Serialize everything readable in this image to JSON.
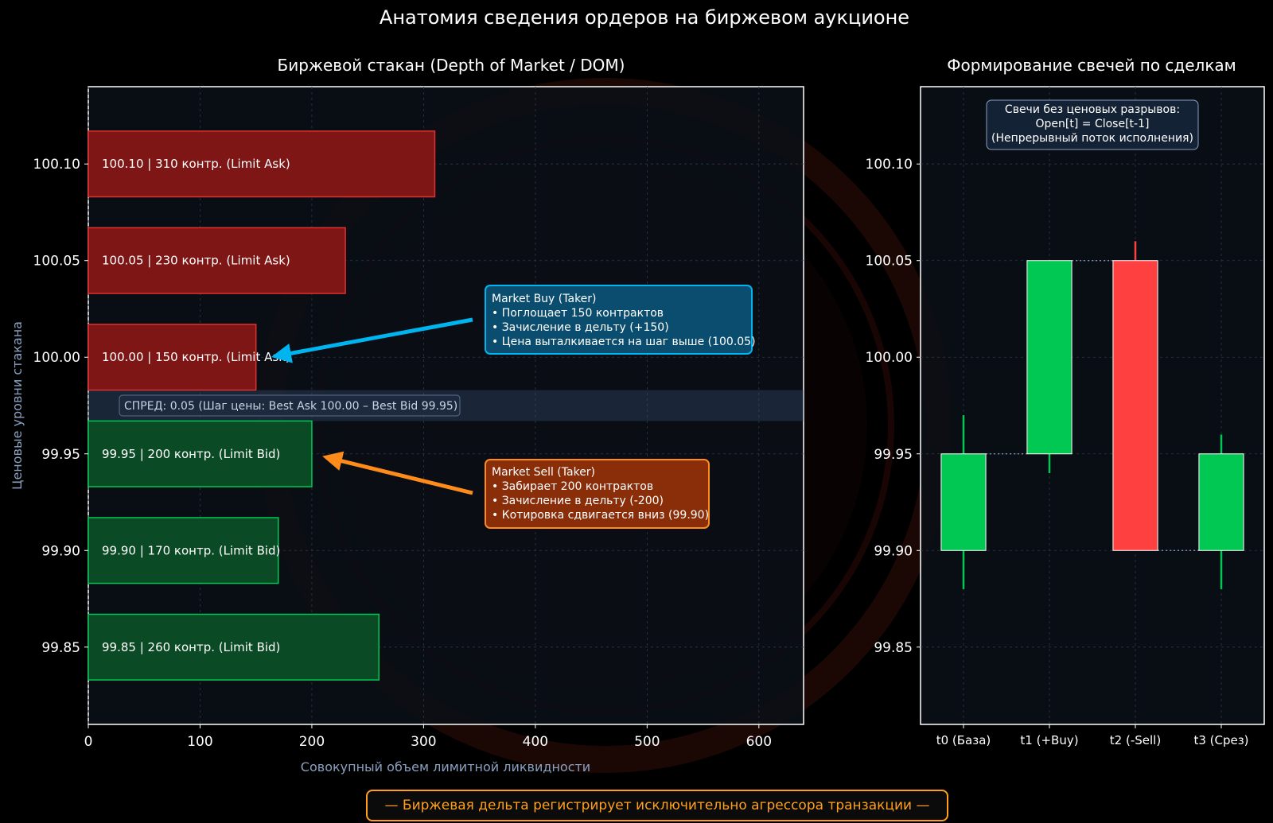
{
  "title": "Анатомия сведения ордеров на биржевом аукционе",
  "footer": "— Биржевая дельта регистрирует исключительно агрессора транзакции —",
  "colors": {
    "ask": "#e03131",
    "bid": "#00c853",
    "buy_callout": "#00b4f0",
    "sell_callout": "#ff8c1a",
    "footer": "#ff9f1c"
  },
  "chart_data": [
    {
      "type": "bar",
      "orientation": "horizontal",
      "title": "Биржевой стакан (Depth of Market / DOM)",
      "xlabel": "Совокупный объем лимитной ликвидности",
      "ylabel": "Ценовые уровни стакана",
      "xlim": [
        0,
        640
      ],
      "ylim": [
        99.81,
        100.14
      ],
      "x_ticks": [
        "0",
        "100",
        "200",
        "300",
        "400",
        "500",
        "600"
      ],
      "y_ticks": [
        "100.10",
        "100.05",
        "100.00",
        "99.95",
        "99.90",
        "99.85"
      ],
      "levels": [
        {
          "price": 100.1,
          "volume": 310,
          "side": "ask",
          "label": "100.10   |   310 контр.  (Limit Ask)"
        },
        {
          "price": 100.05,
          "volume": 230,
          "side": "ask",
          "label": "100.05   |   230 контр.  (Limit Ask)"
        },
        {
          "price": 100.0,
          "volume": 150,
          "side": "ask",
          "label": "100.00   |   150 контр.  (Limit Ask)"
        },
        {
          "price": 99.95,
          "volume": 200,
          "side": "bid",
          "label": "99.95   |   200 контр.  (Limit Bid)"
        },
        {
          "price": 99.9,
          "volume": 170,
          "side": "bid",
          "label": "99.90   |   170 контр.  (Limit Bid)"
        },
        {
          "price": 99.85,
          "volume": 260,
          "side": "bid",
          "label": "99.85   |   260 контр.  (Limit Bid)"
        }
      ],
      "spread": {
        "low": 99.95,
        "high": 100.0,
        "label": "СПРЕД: 0.05 (Шаг цены: Best Ask 100.00 – Best Bid 99.95)"
      },
      "annotations": [
        {
          "name": "market-buy",
          "lines": [
            "Market Buy (Taker)",
            "• Поглощает 150 контрактов",
            "• Зачисление в дельту (+150)",
            "• Цена выталкивается на шаг выше (100.05)"
          ],
          "target": {
            "x": 150,
            "y": 100.0
          }
        },
        {
          "name": "market-sell",
          "lines": [
            "Market Sell (Taker)",
            "• Забирает 200 контрактов",
            "• Зачисление в дельту (-200)",
            "• Котировка сдвигается вниз (99.90)"
          ],
          "target": {
            "x": 210,
            "y": 99.95
          }
        }
      ]
    },
    {
      "type": "candlestick",
      "title": "Формирование свечей по сделкам",
      "ylim": [
        99.81,
        100.14
      ],
      "y_ticks": [
        "100.10",
        "100.05",
        "100.00",
        "99.95",
        "99.90",
        "99.85"
      ],
      "categories": [
        "t0 (База)",
        "t1 (+Buy)",
        "t2 (-Sell)",
        "t3 (Срез)"
      ],
      "candles": [
        {
          "open": 99.9,
          "high": 99.97,
          "low": 99.88,
          "close": 99.95
        },
        {
          "open": 99.95,
          "high": 100.05,
          "low": 99.94,
          "close": 100.05
        },
        {
          "open": 100.05,
          "high": 100.06,
          "low": 99.9,
          "close": 99.9
        },
        {
          "open": 99.9,
          "high": 99.96,
          "low": 99.88,
          "close": 99.95
        }
      ],
      "annotation": [
        "Свечи без ценовых разрывов:",
        "Open[t] = Close[t-1]",
        "(Непрерывный поток исполнения)"
      ]
    }
  ]
}
